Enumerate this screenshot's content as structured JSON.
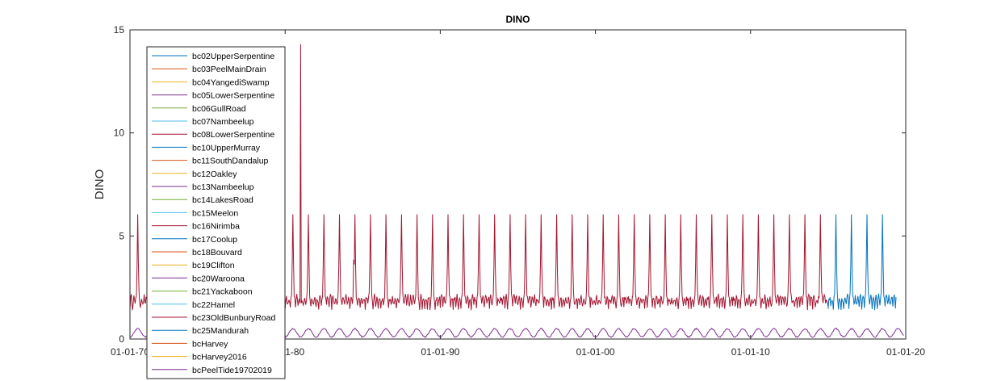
{
  "chart_data": {
    "type": "line",
    "title": "DINO",
    "xlabel": "",
    "ylabel": "DINO",
    "xlim": [
      "1970-01-01",
      "2020-01-01"
    ],
    "ylim": [
      0,
      15
    ],
    "x_ticks": [
      "1970-01-01",
      "1980-01-01",
      "1990-01-01",
      "2000-01-01",
      "2010-01-01",
      "2020-01-01"
    ],
    "x_tick_labels": [
      "01-01-70",
      "01-01-80",
      "01-01-90",
      "01-01-00",
      "01-01-10",
      "01-01-20"
    ],
    "y_ticks": [
      0,
      5,
      10,
      15
    ],
    "y_tick_labels": [
      "0",
      "5",
      "10",
      "15"
    ],
    "grid": false,
    "legend_position": "top-left",
    "series": [
      {
        "name": "bc02UpperSerpentine",
        "color": "#0072BD"
      },
      {
        "name": "bc03PeelMainDrain",
        "color": "#D95319"
      },
      {
        "name": "bc04YangediSwamp",
        "color": "#EDB120"
      },
      {
        "name": "bc05LowerSerpentine",
        "color": "#7E2F8E"
      },
      {
        "name": "bc06GullRoad",
        "color": "#77AC30"
      },
      {
        "name": "bc07Nambeelup",
        "color": "#4DBEEE"
      },
      {
        "name": "bc08LowerSerpentine",
        "color": "#A2142F"
      },
      {
        "name": "bc10UpperMurray",
        "color": "#0072BD"
      },
      {
        "name": "bc11SouthDandalup",
        "color": "#D95319"
      },
      {
        "name": "bc12Oakley",
        "color": "#EDB120"
      },
      {
        "name": "bc13Nambeelup",
        "color": "#7E2F8E"
      },
      {
        "name": "bc14LakesRoad",
        "color": "#77AC30"
      },
      {
        "name": "bc15Meelon",
        "color": "#4DBEEE"
      },
      {
        "name": "bc16Nirimba",
        "color": "#A2142F"
      },
      {
        "name": "bc17Coolup",
        "color": "#0072BD"
      },
      {
        "name": "bc18Bouvard",
        "color": "#D95319"
      },
      {
        "name": "bc19Clifton",
        "color": "#EDB120"
      },
      {
        "name": "bc20Waroona",
        "color": "#7E2F8E"
      },
      {
        "name": "bc21Yackaboon",
        "color": "#77AC30"
      },
      {
        "name": "bc22Hamel",
        "color": "#4DBEEE"
      },
      {
        "name": "bc23OldBunburyRoad",
        "color": "#A2142F"
      },
      {
        "name": "bc25Mandurah",
        "color": "#0072BD"
      },
      {
        "name": "bcHarvey",
        "color": "#D95319"
      },
      {
        "name": "bcHarvey2016",
        "color": "#EDB120"
      },
      {
        "name": "bcPeelTide19702019",
        "color": "#7E2F8E"
      }
    ],
    "plotted_traces": [
      {
        "series": "bc08LowerSerpentine",
        "color": "#A2142F",
        "x_start": "1970-01-01",
        "x_end": "2015-01-01",
        "baseline_min": 1.4,
        "seasonal_peak": 6.05,
        "notable_points": [
          {
            "x": "1981-01-01",
            "y": 14.3
          },
          {
            "x": "1984-06-01",
            "y": 3.85
          }
        ]
      },
      {
        "series": "bc02UpperSerpentine",
        "color": "#0072BD",
        "x_start": "2015-01-01",
        "x_end": "2019-06-01",
        "baseline_min": 1.4,
        "seasonal_peak": 6.05
      },
      {
        "series": "bcPeelTide19702019",
        "color": "#7E2F8E",
        "x_start": "1970-01-01",
        "x_end": "2019-12-01",
        "baseline_min": 0.1,
        "seasonal_peak": 0.5
      }
    ]
  }
}
